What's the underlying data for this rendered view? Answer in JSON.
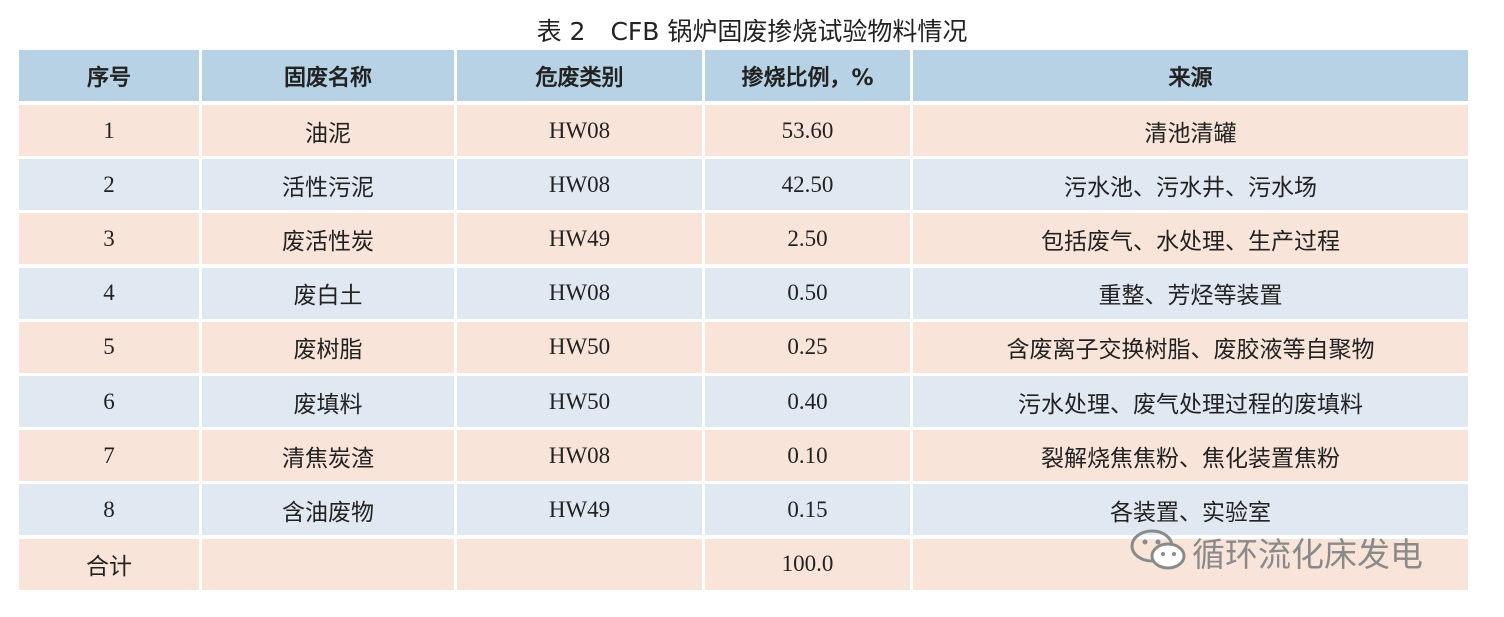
{
  "title": "表 2　CFB 锅炉固废掺烧试验物料情况",
  "table": {
    "header": [
      "序号",
      "固废名称",
      "危废类别",
      "掺烧比例，%",
      "来源"
    ],
    "rows": [
      [
        "1",
        "油泥",
        "HW08",
        "53.60",
        "清池清罐"
      ],
      [
        "2",
        "活性污泥",
        "HW08",
        "42.50",
        "污水池、污水井、污水场"
      ],
      [
        "3",
        "废活性炭",
        "HW49",
        "2.50",
        "包括废气、水处理、生产过程"
      ],
      [
        "4",
        "废白土",
        "HW08",
        "0.50",
        "重整、芳烃等装置"
      ],
      [
        "5",
        "废树脂",
        "HW50",
        "0.25",
        "含废离子交换树脂、废胶液等自聚物"
      ],
      [
        "6",
        "废填料",
        "HW50",
        "0.40",
        "污水处理、废气处理过程的废填料"
      ],
      [
        "7",
        "清焦炭渣",
        "HW08",
        "0.10",
        "裂解烧焦焦粉、焦化装置焦粉"
      ],
      [
        "8",
        "含油废物",
        "HW49",
        "0.15",
        "各装置、实验室"
      ]
    ],
    "total": {
      "label": "合计",
      "ratio": "100.0"
    }
  },
  "watermark": "循环流化床发电"
}
